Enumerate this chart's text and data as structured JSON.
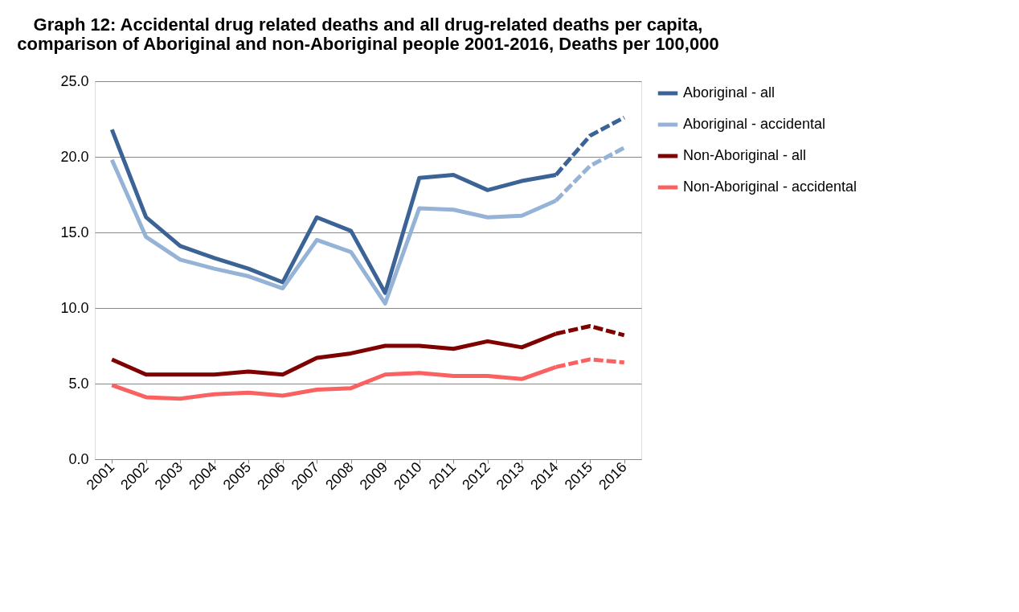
{
  "chart_data": {
    "type": "line",
    "title": "Graph 12: Accidental drug related deaths and all drug-related deaths per capita, comparison of Aboriginal and non-Aboriginal people 2001-2016, Deaths per 100,000",
    "categories": [
      "2001",
      "2002",
      "2003",
      "2004",
      "2005",
      "2006",
      "2007",
      "2008",
      "2009",
      "2010",
      "2011",
      "2012",
      "2013",
      "2014",
      "2015",
      "2016"
    ],
    "series": [
      {
        "name": "Aboriginal - all",
        "color": "#3b6396",
        "line_style": "solid",
        "values": [
          21.8,
          16.0,
          14.1,
          13.3,
          12.6,
          11.7,
          16.0,
          15.1,
          11.0,
          18.6,
          18.8,
          17.8,
          18.4,
          18.8,
          null,
          null
        ]
      },
      {
        "name": "Aboriginal - accidental",
        "color": "#95b3d7",
        "line_style": "solid",
        "values": [
          19.8,
          14.7,
          13.2,
          12.6,
          12.1,
          11.3,
          14.5,
          13.7,
          10.3,
          16.6,
          16.5,
          16.0,
          16.1,
          17.1,
          null,
          null
        ]
      },
      {
        "name": "Non-Aboriginal - all",
        "color": "#7f0000",
        "line_style": "solid",
        "values": [
          6.6,
          5.6,
          5.6,
          5.6,
          5.8,
          5.6,
          6.7,
          7.0,
          7.5,
          7.5,
          7.3,
          7.8,
          7.4,
          8.3,
          null,
          null
        ]
      },
      {
        "name": "Non-Aboriginal - accidental",
        "color": "#fa6262",
        "line_style": "solid",
        "values": [
          4.9,
          4.1,
          4.0,
          4.3,
          4.4,
          4.2,
          4.6,
          4.7,
          5.6,
          5.7,
          5.5,
          5.5,
          5.3,
          6.1,
          null,
          null
        ]
      },
      {
        "color": "#3b6396",
        "line_style": "dashed",
        "values": [
          null,
          null,
          null,
          null,
          null,
          null,
          null,
          null,
          null,
          null,
          null,
          null,
          null,
          18.8,
          21.4,
          22.6
        ]
      },
      {
        "color": "#95b3d7",
        "line_style": "dashed",
        "values": [
          null,
          null,
          null,
          null,
          null,
          null,
          null,
          null,
          null,
          null,
          null,
          null,
          null,
          17.1,
          19.4,
          20.6
        ]
      },
      {
        "color": "#7f0000",
        "line_style": "dashed",
        "values": [
          null,
          null,
          null,
          null,
          null,
          null,
          null,
          null,
          null,
          null,
          null,
          null,
          null,
          8.3,
          8.8,
          8.2
        ]
      },
      {
        "color": "#fa6262",
        "line_style": "dashed",
        "values": [
          null,
          null,
          null,
          null,
          null,
          null,
          null,
          null,
          null,
          null,
          null,
          null,
          null,
          6.1,
          6.6,
          6.4
        ]
      }
    ],
    "ylim": [
      0,
      25
    ],
    "yticks": [
      {
        "value": 0,
        "label": "0.0"
      },
      {
        "value": 5,
        "label": "5.0"
      },
      {
        "value": 10,
        "label": "10.0"
      },
      {
        "value": 15,
        "label": "15.0"
      },
      {
        "value": 20,
        "label": "20.0"
      },
      {
        "value": 25,
        "label": "25.0"
      }
    ],
    "grid": "y",
    "legend": "right",
    "marker": "none"
  }
}
